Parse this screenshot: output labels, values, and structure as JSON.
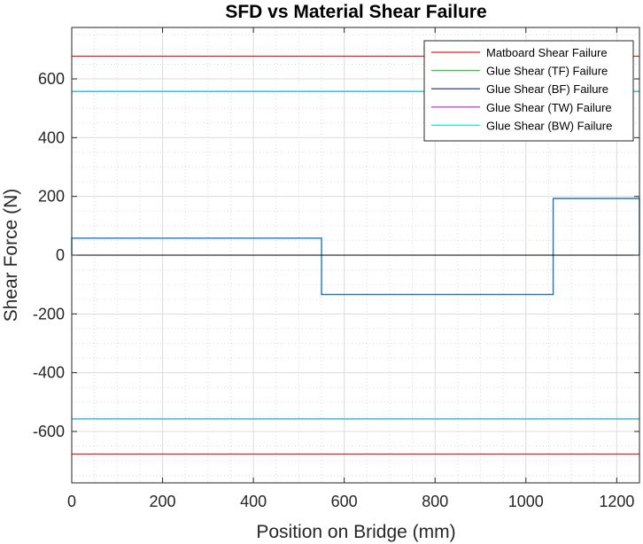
{
  "chart_data": {
    "type": "line",
    "title": "SFD vs Material Shear Failure",
    "xlabel": "Position on Bridge (mm)",
    "ylabel": "Shear Force (N)",
    "xlim": [
      0,
      1250
    ],
    "ylim": [
      -775,
      775
    ],
    "xticks": [
      0,
      200,
      400,
      600,
      800,
      1000,
      1200
    ],
    "yticks": [
      -600,
      -400,
      -200,
      0,
      200,
      400,
      600
    ],
    "grid": true,
    "minor_grid": true,
    "legend_position": "top-right",
    "series": [
      {
        "name": "Matboard Shear Failure",
        "color": "#d62728",
        "segments": [
          {
            "x": [
              0,
              1250
            ],
            "y": [
              677,
              677
            ]
          },
          {
            "x": [
              0,
              1250
            ],
            "y": [
              -677,
              -677
            ]
          }
        ]
      },
      {
        "name": "Glue Shear (TF) Failure",
        "color": "#2ecc40",
        "segments": [
          {
            "x": [
              0,
              1250
            ],
            "y": [
              557,
              557
            ]
          },
          {
            "x": [
              0,
              1250
            ],
            "y": [
              -557,
              -557
            ]
          }
        ]
      },
      {
        "name": "Glue Shear (BF) Failure",
        "color": "#0b2a8a",
        "segments": [
          {
            "x": [
              0,
              1250
            ],
            "y": [
              557,
              557
            ]
          },
          {
            "x": [
              0,
              1250
            ],
            "y": [
              -557,
              -557
            ]
          }
        ]
      },
      {
        "name": "Glue Shear (TW) Failure",
        "color": "#b026c9",
        "segments": [
          {
            "x": [
              0,
              1250
            ],
            "y": [
              557,
              557
            ]
          },
          {
            "x": [
              0,
              1250
            ],
            "y": [
              -557,
              -557
            ]
          }
        ]
      },
      {
        "name": "Glue Shear (BW) Failure",
        "color": "#19e6e6",
        "segments": [
          {
            "x": [
              0,
              1250
            ],
            "y": [
              557,
              557
            ]
          },
          {
            "x": [
              0,
              1250
            ],
            "y": [
              -557,
              -557
            ]
          }
        ]
      }
    ],
    "extra_lines": [
      {
        "role": "sfd",
        "color": "#1f77b4",
        "x": [
          0,
          0,
          550,
          550,
          1060,
          1060,
          1250,
          1250
        ],
        "y": [
          0,
          58,
          58,
          -134,
          -134,
          193,
          193,
          0
        ]
      },
      {
        "role": "zero-line",
        "color": "#000000",
        "x": [
          0,
          1250
        ],
        "y": [
          0,
          0
        ]
      }
    ]
  }
}
